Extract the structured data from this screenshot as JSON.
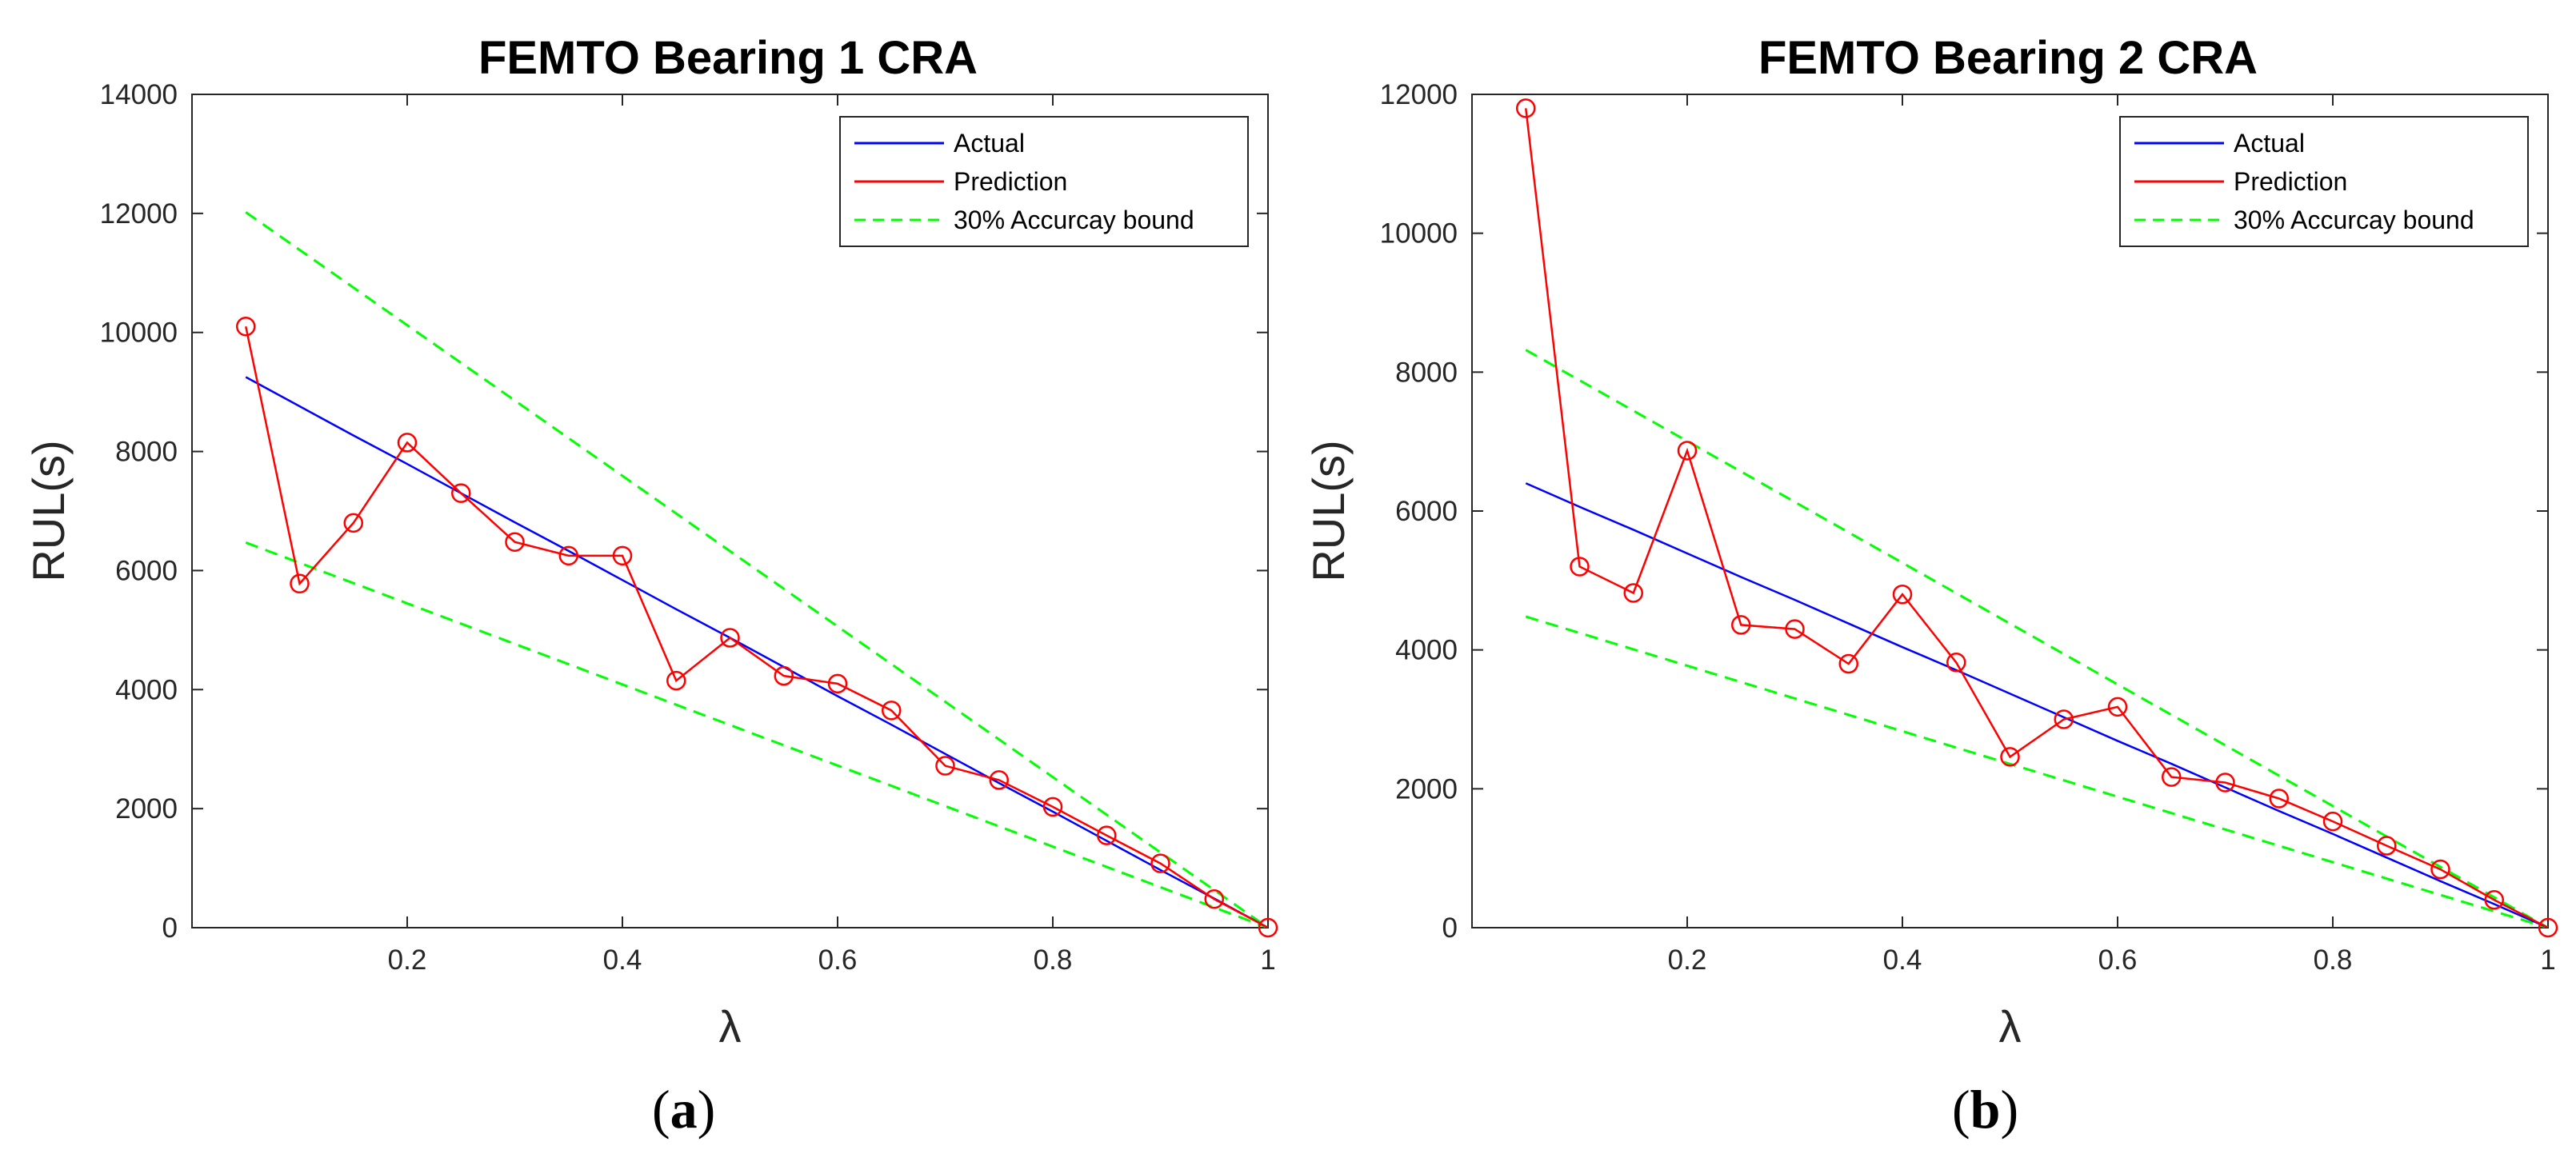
{
  "chart_data": [
    {
      "type": "line",
      "title": "FEMTO Bearing 1 CRA",
      "xlabel": "λ",
      "ylabel": "RUL(s)",
      "panel_label": {
        "open": "(",
        "letter": "a",
        "close": ")"
      },
      "xlim": [
        0,
        1
      ],
      "ylim": [
        0,
        14000
      ],
      "xticks": [
        0.2,
        0.4,
        0.6,
        0.8,
        1
      ],
      "xtick_labels": [
        "0.2",
        "0.4",
        "0.6",
        "0.8",
        "1"
      ],
      "yticks": [
        0,
        2000,
        4000,
        6000,
        8000,
        10000,
        12000,
        14000
      ],
      "ytick_labels": [
        "0",
        "2000",
        "4000",
        "6000",
        "8000",
        "10000",
        "12000",
        "14000"
      ],
      "x": [
        0.05,
        0.1,
        0.15,
        0.2,
        0.25,
        0.3,
        0.35,
        0.4,
        0.45,
        0.5,
        0.55,
        0.6,
        0.65,
        0.7,
        0.75,
        0.8,
        0.85,
        0.9,
        0.95,
        1.0
      ],
      "series": [
        {
          "name": "Actual",
          "color": "#0000ff",
          "style": "solid",
          "marker": "none",
          "values": [
            9250,
            8760,
            8270,
            7790,
            7300,
            6810,
            6330,
            5840,
            5350,
            4870,
            4380,
            3890,
            3410,
            2920,
            2430,
            1950,
            1460,
            970,
            490,
            0
          ]
        },
        {
          "name": "Prediction",
          "color": "#ff0000",
          "style": "solid",
          "marker": "circle",
          "values": [
            10100,
            5780,
            6800,
            8150,
            7300,
            6480,
            6250,
            6250,
            4150,
            4870,
            4230,
            4100,
            3650,
            2720,
            2480,
            2030,
            1550,
            1080,
            480,
            0
          ]
        },
        {
          "name": "30% Accurcay bound",
          "color": "#00ff00",
          "style": "dashed",
          "marker": "none",
          "upper": [
            12020,
            0
          ],
          "lower": [
            6470,
            0
          ],
          "x": [
            0.05,
            1.0
          ]
        }
      ],
      "legend": {
        "position": "top-right",
        "entries": [
          "Actual",
          "Prediction",
          "30% Accurcay bound"
        ]
      }
    },
    {
      "type": "line",
      "title": "FEMTO Bearing 2 CRA",
      "xlabel": "λ",
      "ylabel": "RUL(s)",
      "panel_label": {
        "open": "(",
        "letter": "b",
        "close": ")"
      },
      "xlim": [
        0,
        1
      ],
      "ylim": [
        0,
        12000
      ],
      "xticks": [
        0.2,
        0.4,
        0.6,
        0.8,
        1
      ],
      "xtick_labels": [
        "0.2",
        "0.4",
        "0.6",
        "0.8",
        "1"
      ],
      "yticks": [
        0,
        2000,
        4000,
        6000,
        8000,
        10000,
        12000
      ],
      "ytick_labels": [
        "0",
        "2000",
        "4000",
        "6000",
        "8000",
        "10000",
        "12000"
      ],
      "x": [
        0.05,
        0.1,
        0.15,
        0.2,
        0.25,
        0.3,
        0.35,
        0.4,
        0.45,
        0.5,
        0.55,
        0.6,
        0.65,
        0.7,
        0.75,
        0.8,
        0.85,
        0.9,
        0.95,
        1.0
      ],
      "series": [
        {
          "name": "Actual",
          "color": "#0000ff",
          "style": "solid",
          "marker": "none",
          "values": [
            6400,
            6060,
            5730,
            5390,
            5050,
            4720,
            4380,
            4040,
            3710,
            3370,
            3030,
            2690,
            2360,
            2020,
            1680,
            1350,
            1010,
            670,
            340,
            0
          ]
        },
        {
          "name": "Prediction",
          "color": "#ff0000",
          "style": "solid",
          "marker": "circle",
          "values": [
            11800,
            5200,
            4820,
            6870,
            4360,
            4300,
            3800,
            4800,
            3820,
            2460,
            3000,
            3180,
            2170,
            2090,
            1860,
            1530,
            1180,
            840,
            400,
            0
          ]
        },
        {
          "name": "30% Accurcay bound",
          "color": "#00ff00",
          "style": "dashed",
          "marker": "none",
          "upper": [
            8320,
            0
          ],
          "lower": [
            4480,
            0
          ],
          "x": [
            0.05,
            1.0
          ]
        }
      ],
      "legend": {
        "position": "top-right",
        "entries": [
          "Actual",
          "Prediction",
          "30% Accurcay bound"
        ]
      }
    }
  ]
}
